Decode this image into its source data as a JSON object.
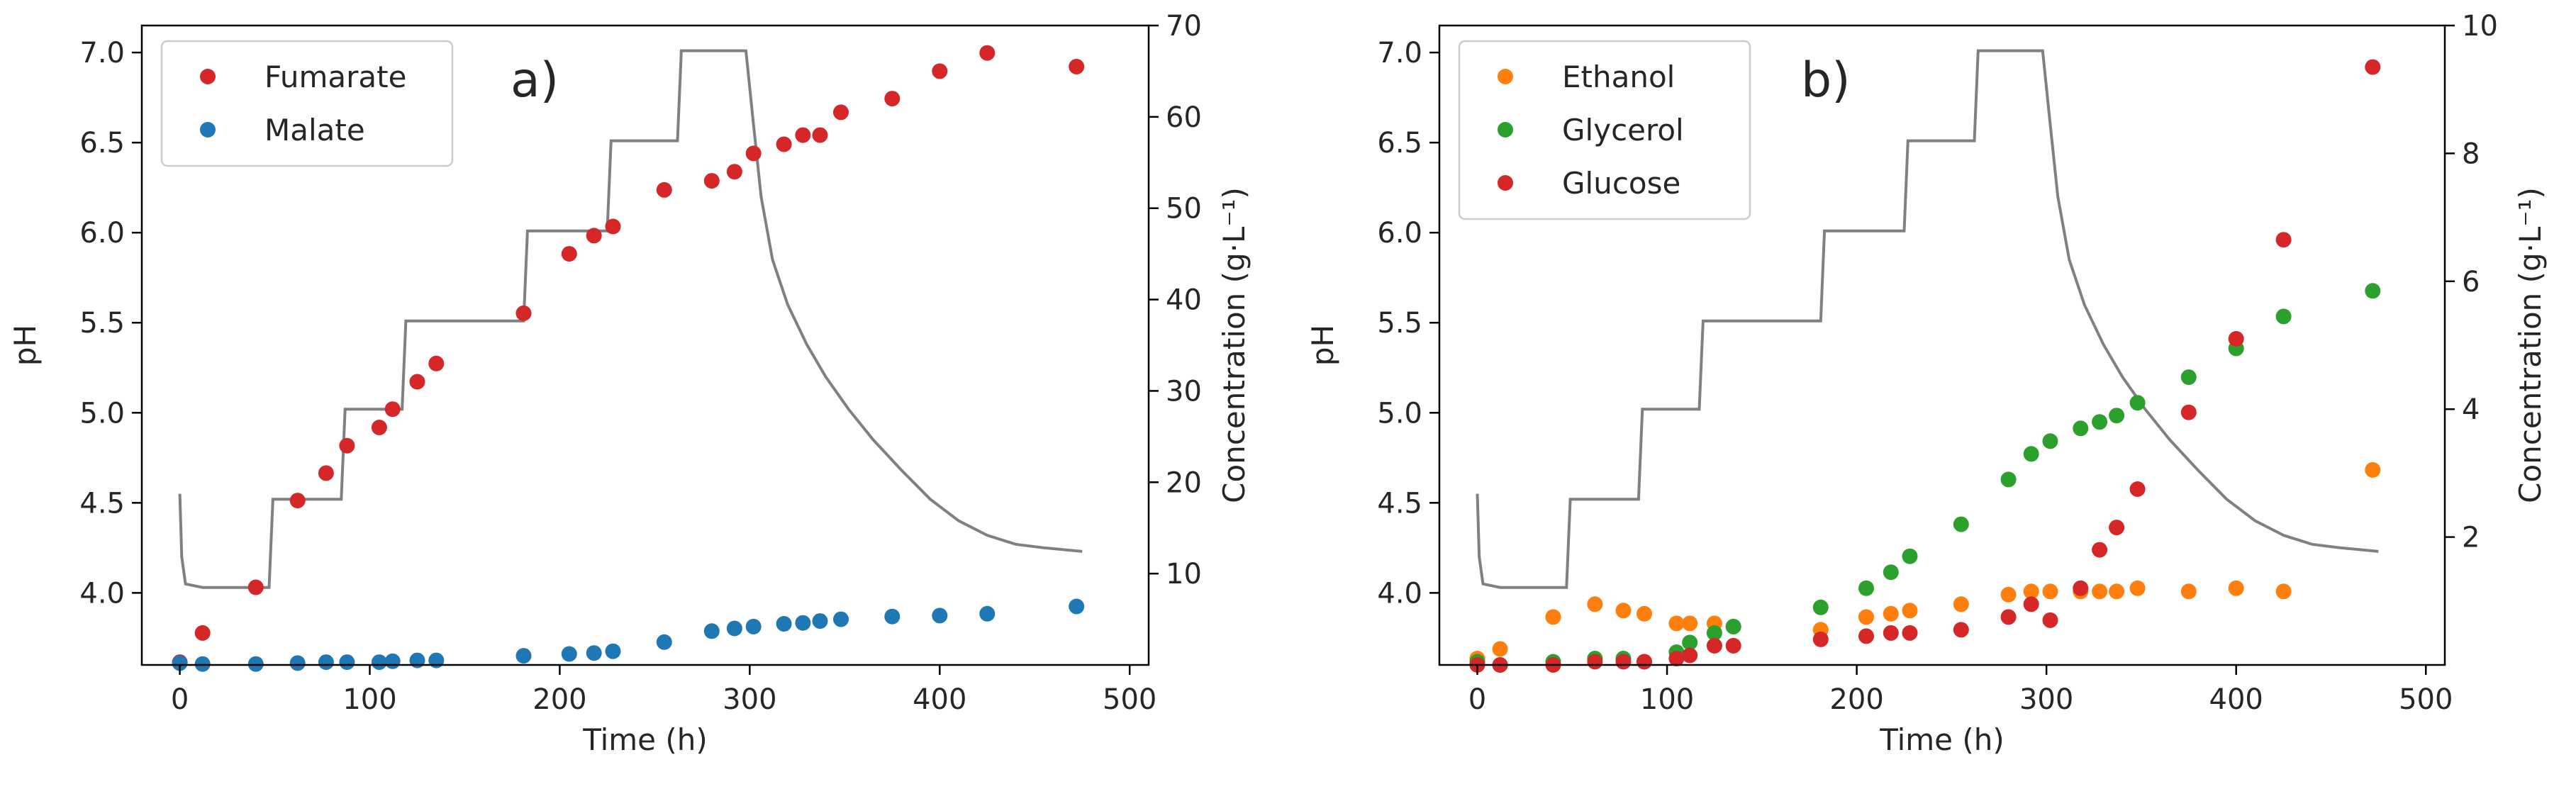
{
  "chart_data": [
    {
      "type": "scatter",
      "panel_label": "a)",
      "xlabel": "Time (h)",
      "ylabel_left": "pH",
      "ylabel_right": "Concentration (g·L⁻¹)",
      "xlim": [
        -20,
        510
      ],
      "ylim_left": [
        3.6,
        7.15
      ],
      "ylim_right": [
        0,
        70
      ],
      "xticks": [
        0,
        100,
        200,
        300,
        400,
        500
      ],
      "yticks_left": [
        4.0,
        4.5,
        5.0,
        5.5,
        6.0,
        6.5,
        7.0
      ],
      "yticks_right": [
        10,
        20,
        30,
        40,
        50,
        60,
        70
      ],
      "legend_position": "upper-left",
      "ph_series": {
        "name": "pH",
        "color": "#808080",
        "points": [
          [
            0,
            4.55
          ],
          [
            1,
            4.2
          ],
          [
            3,
            4.05
          ],
          [
            12,
            4.03
          ],
          [
            40,
            4.03
          ],
          [
            47,
            4.03
          ],
          [
            49,
            4.52
          ],
          [
            85,
            4.52
          ],
          [
            87,
            5.02
          ],
          [
            117,
            5.02
          ],
          [
            119,
            5.51
          ],
          [
            181,
            5.51
          ],
          [
            183,
            6.01
          ],
          [
            225,
            6.01
          ],
          [
            227,
            6.51
          ],
          [
            262,
            6.51
          ],
          [
            264,
            7.01
          ],
          [
            298,
            7.01
          ],
          [
            302,
            6.6
          ],
          [
            306,
            6.2
          ],
          [
            312,
            5.85
          ],
          [
            320,
            5.6
          ],
          [
            330,
            5.38
          ],
          [
            340,
            5.2
          ],
          [
            352,
            5.02
          ],
          [
            365,
            4.85
          ],
          [
            380,
            4.68
          ],
          [
            395,
            4.52
          ],
          [
            410,
            4.4
          ],
          [
            425,
            4.32
          ],
          [
            440,
            4.27
          ],
          [
            455,
            4.25
          ],
          [
            475,
            4.23
          ]
        ]
      },
      "series": [
        {
          "name": "Fumarate",
          "color": "#d62728",
          "axis": "right",
          "points": [
            [
              0,
              0.3
            ],
            [
              12,
              3.5
            ],
            [
              40,
              8.5
            ],
            [
              62,
              18
            ],
            [
              77,
              21
            ],
            [
              88,
              24
            ],
            [
              105,
              26
            ],
            [
              112,
              28
            ],
            [
              125,
              31
            ],
            [
              135,
              33
            ],
            [
              181,
              38.5
            ],
            [
              205,
              45
            ],
            [
              218,
              47
            ],
            [
              228,
              48
            ],
            [
              255,
              52
            ],
            [
              280,
              53
            ],
            [
              292,
              54
            ],
            [
              302,
              56
            ],
            [
              318,
              57
            ],
            [
              328,
              58
            ],
            [
              337,
              58
            ],
            [
              348,
              60.5
            ],
            [
              375,
              62
            ],
            [
              400,
              65
            ],
            [
              425,
              67
            ],
            [
              472,
              65.5
            ]
          ]
        },
        {
          "name": "Malate",
          "color": "#1f77b4",
          "axis": "right",
          "points": [
            [
              0,
              0.2
            ],
            [
              12,
              0.1
            ],
            [
              40,
              0.1
            ],
            [
              62,
              0.2
            ],
            [
              77,
              0.3
            ],
            [
              88,
              0.3
            ],
            [
              105,
              0.3
            ],
            [
              112,
              0.4
            ],
            [
              125,
              0.5
            ],
            [
              135,
              0.5
            ],
            [
              181,
              1.0
            ],
            [
              205,
              1.2
            ],
            [
              218,
              1.3
            ],
            [
              228,
              1.5
            ],
            [
              255,
              2.5
            ],
            [
              280,
              3.7
            ],
            [
              292,
              4.0
            ],
            [
              302,
              4.2
            ],
            [
              318,
              4.5
            ],
            [
              328,
              4.6
            ],
            [
              337,
              4.8
            ],
            [
              348,
              5.0
            ],
            [
              375,
              5.3
            ],
            [
              400,
              5.4
            ],
            [
              425,
              5.6
            ],
            [
              472,
              6.4
            ]
          ]
        }
      ]
    },
    {
      "type": "scatter",
      "panel_label": "b)",
      "xlabel": "Time (h)",
      "ylabel_left": "pH",
      "ylabel_right": "Concentration (g·L⁻¹)",
      "xlim": [
        -20,
        510
      ],
      "ylim_left": [
        3.6,
        7.15
      ],
      "ylim_right": [
        0,
        10
      ],
      "xticks": [
        0,
        100,
        200,
        300,
        400,
        500
      ],
      "yticks_left": [
        4.0,
        4.5,
        5.0,
        5.5,
        6.0,
        6.5,
        7.0
      ],
      "yticks_right": [
        2,
        4,
        6,
        8,
        10
      ],
      "legend_position": "upper-left",
      "ph_series": {
        "name": "pH",
        "color": "#808080",
        "points": [
          [
            0,
            4.55
          ],
          [
            1,
            4.2
          ],
          [
            3,
            4.05
          ],
          [
            12,
            4.03
          ],
          [
            40,
            4.03
          ],
          [
            47,
            4.03
          ],
          [
            49,
            4.52
          ],
          [
            85,
            4.52
          ],
          [
            87,
            5.02
          ],
          [
            117,
            5.02
          ],
          [
            119,
            5.51
          ],
          [
            181,
            5.51
          ],
          [
            183,
            6.01
          ],
          [
            225,
            6.01
          ],
          [
            227,
            6.51
          ],
          [
            262,
            6.51
          ],
          [
            264,
            7.01
          ],
          [
            298,
            7.01
          ],
          [
            302,
            6.6
          ],
          [
            306,
            6.2
          ],
          [
            312,
            5.85
          ],
          [
            320,
            5.6
          ],
          [
            330,
            5.38
          ],
          [
            340,
            5.2
          ],
          [
            352,
            5.02
          ],
          [
            365,
            4.85
          ],
          [
            380,
            4.68
          ],
          [
            395,
            4.52
          ],
          [
            410,
            4.4
          ],
          [
            425,
            4.32
          ],
          [
            440,
            4.27
          ],
          [
            455,
            4.25
          ],
          [
            475,
            4.23
          ]
        ]
      },
      "series": [
        {
          "name": "Ethanol",
          "color": "#ff7f0e",
          "axis": "right",
          "points": [
            [
              0,
              0.1
            ],
            [
              12,
              0.25
            ],
            [
              40,
              0.75
            ],
            [
              62,
              0.95
            ],
            [
              77,
              0.85
            ],
            [
              88,
              0.8
            ],
            [
              105,
              0.65
            ],
            [
              112,
              0.65
            ],
            [
              125,
              0.65
            ],
            [
              135,
              0.6
            ],
            [
              181,
              0.55
            ],
            [
              205,
              0.75
            ],
            [
              218,
              0.8
            ],
            [
              228,
              0.85
            ],
            [
              255,
              0.95
            ],
            [
              280,
              1.1
            ],
            [
              292,
              1.15
            ],
            [
              302,
              1.15
            ],
            [
              318,
              1.15
            ],
            [
              328,
              1.15
            ],
            [
              337,
              1.15
            ],
            [
              348,
              1.2
            ],
            [
              375,
              1.15
            ],
            [
              400,
              1.2
            ],
            [
              425,
              1.15
            ],
            [
              472,
              3.05
            ]
          ]
        },
        {
          "name": "Glycerol",
          "color": "#2ca02c",
          "axis": "right",
          "points": [
            [
              0,
              0.05
            ],
            [
              12,
              0.0
            ],
            [
              40,
              0.05
            ],
            [
              62,
              0.1
            ],
            [
              77,
              0.1
            ],
            [
              88,
              0.05
            ],
            [
              105,
              0.2
            ],
            [
              112,
              0.35
            ],
            [
              125,
              0.5
            ],
            [
              135,
              0.6
            ],
            [
              181,
              0.9
            ],
            [
              205,
              1.2
            ],
            [
              218,
              1.45
            ],
            [
              228,
              1.7
            ],
            [
              255,
              2.2
            ],
            [
              280,
              2.9
            ],
            [
              292,
              3.3
            ],
            [
              302,
              3.5
            ],
            [
              318,
              3.7
            ],
            [
              328,
              3.8
            ],
            [
              337,
              3.9
            ],
            [
              348,
              4.1
            ],
            [
              375,
              4.5
            ],
            [
              400,
              4.95
            ],
            [
              425,
              5.45
            ],
            [
              472,
              5.85
            ]
          ]
        },
        {
          "name": "Glucose",
          "color": "#d62728",
          "axis": "right",
          "points": [
            [
              0,
              0.0
            ],
            [
              12,
              0.0
            ],
            [
              40,
              0.0
            ],
            [
              62,
              0.05
            ],
            [
              77,
              0.05
            ],
            [
              88,
              0.05
            ],
            [
              105,
              0.1
            ],
            [
              112,
              0.15
            ],
            [
              125,
              0.3
            ],
            [
              135,
              0.3
            ],
            [
              181,
              0.4
            ],
            [
              205,
              0.45
            ],
            [
              218,
              0.5
            ],
            [
              228,
              0.5
            ],
            [
              255,
              0.55
            ],
            [
              280,
              0.75
            ],
            [
              292,
              0.95
            ],
            [
              302,
              0.7
            ],
            [
              318,
              1.2
            ],
            [
              328,
              1.8
            ],
            [
              337,
              2.15
            ],
            [
              348,
              2.75
            ],
            [
              375,
              3.95
            ],
            [
              400,
              5.1
            ],
            [
              425,
              6.65
            ],
            [
              472,
              9.35
            ]
          ]
        }
      ]
    }
  ]
}
